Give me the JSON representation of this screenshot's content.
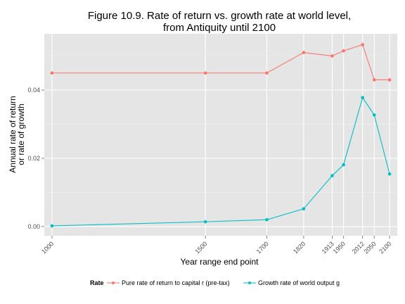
{
  "chart_data": {
    "type": "line",
    "title": [
      "Figure 10.9. Rate of return vs. growth rate at world level,",
      "from Antiquity until 2100"
    ],
    "xlabel": "Year range end point",
    "ylabel": [
      "Annual rate of return",
      "or rate of growth"
    ],
    "x": [
      1000,
      1500,
      1700,
      1820,
      1913,
      1950,
      2012,
      2050,
      2100
    ],
    "x_tick_labels": [
      "1000",
      "1500",
      "1700",
      "1820",
      "1913",
      "1950",
      "2012",
      "2050",
      "2100"
    ],
    "y_ticks": [
      0.0,
      0.02,
      0.04
    ],
    "y_tick_labels": [
      "0.00",
      "0.02",
      "0.04"
    ],
    "xlim": [
      975,
      2125
    ],
    "ylim": [
      -0.0027,
      0.0565
    ],
    "grid": true,
    "legend_position": "bottom",
    "legend_title": "Rate",
    "series": [
      {
        "name": "Pure rate of return to capital r (pre-tax)",
        "color": "#F8766D",
        "values": [
          0.045,
          0.045,
          0.045,
          0.051,
          0.05,
          0.0515,
          0.0533,
          0.043,
          0.043
        ]
      },
      {
        "name": "Growth rate of world output g",
        "color": "#00BFC4",
        "values": [
          0.0002,
          0.0014,
          0.002,
          0.0052,
          0.0149,
          0.0181,
          0.0378,
          0.0327,
          0.0154
        ]
      }
    ]
  }
}
